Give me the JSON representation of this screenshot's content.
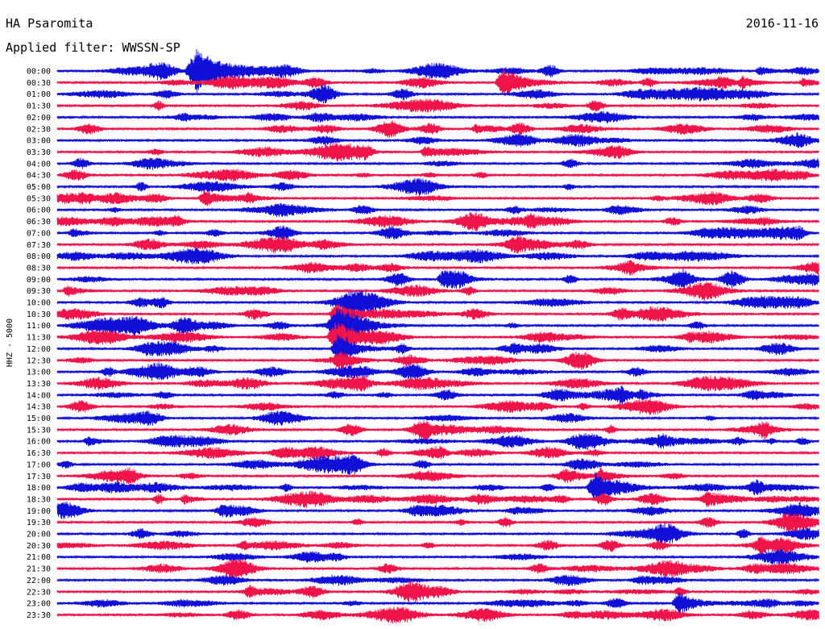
{
  "header": {
    "station": "HA Psaromita",
    "date": "2016-11-16",
    "filter": "Applied filter: WWSSN-SP"
  },
  "colors": {
    "even_row": "#1010d8",
    "odd_row": "#f0144a",
    "text": "#000000"
  },
  "chart_data": {
    "type": "line",
    "ylabel": "HHZ - 5000",
    "row_labels": [
      "00:00",
      "00:30",
      "01:00",
      "01:30",
      "02:00",
      "02:30",
      "03:00",
      "03:30",
      "04:00",
      "04:30",
      "05:00",
      "05:30",
      "06:00",
      "06:30",
      "07:00",
      "07:30",
      "08:00",
      "08:30",
      "09:00",
      "09:30",
      "10:00",
      "10:30",
      "11:00",
      "11:30",
      "12:00",
      "12:30",
      "13:00",
      "13:30",
      "14:00",
      "14:30",
      "15:00",
      "15:30",
      "16:00",
      "16:30",
      "17:00",
      "17:30",
      "18:00",
      "18:30",
      "19:00",
      "19:30",
      "20:00",
      "20:30",
      "21:00",
      "21:30",
      "22:00",
      "22:30",
      "23:00",
      "23:30"
    ],
    "minutes_per_row": 30,
    "row_color_pattern": [
      "even_row",
      "odd_row"
    ],
    "events": [
      {
        "row": 0,
        "minute": 5.5,
        "amplitude": 2.4
      },
      {
        "row": 0,
        "minute": 27.7,
        "amplitude": 0.5
      },
      {
        "row": 1,
        "minute": 17.6,
        "amplitude": 1.6
      },
      {
        "row": 1,
        "minute": 27.0,
        "amplitude": 0.6
      },
      {
        "row": 1,
        "minute": 29.4,
        "amplitude": 0.5
      },
      {
        "row": 5,
        "minute": 16.5,
        "amplitude": 0.5
      },
      {
        "row": 7,
        "minute": 14.5,
        "amplitude": 0.6
      },
      {
        "row": 11,
        "minute": 5.8,
        "amplitude": 0.9
      },
      {
        "row": 13,
        "minute": 18.6,
        "amplitude": 0.6
      },
      {
        "row": 14,
        "minute": 0.6,
        "amplitude": 0.5
      },
      {
        "row": 18,
        "minute": 15.2,
        "amplitude": 0.9
      },
      {
        "row": 19,
        "minute": 0.4,
        "amplitude": 0.6
      },
      {
        "row": 21,
        "minute": 11.0,
        "amplitude": 1.2
      },
      {
        "row": 22,
        "minute": 11.0,
        "amplitude": 1.8
      },
      {
        "row": 23,
        "minute": 11.0,
        "amplitude": 1.8
      },
      {
        "row": 24,
        "minute": 11.1,
        "amplitude": 1.4
      },
      {
        "row": 25,
        "minute": 11.1,
        "amplitude": 0.8
      },
      {
        "row": 28,
        "minute": 22.2,
        "amplitude": 0.6
      },
      {
        "row": 28,
        "minute": 23.0,
        "amplitude": 0.5
      },
      {
        "row": 32,
        "minute": 1.2,
        "amplitude": 0.5
      },
      {
        "row": 32,
        "minute": 23.8,
        "amplitude": 0.5
      },
      {
        "row": 35,
        "minute": 21.4,
        "amplitude": 0.8
      },
      {
        "row": 36,
        "minute": 21.2,
        "amplitude": 1.6
      },
      {
        "row": 37,
        "minute": 5.0,
        "amplitude": 0.5
      },
      {
        "row": 37,
        "minute": 25.6,
        "amplitude": 0.6
      },
      {
        "row": 46,
        "minute": 24.5,
        "amplitude": 1.2
      }
    ]
  }
}
